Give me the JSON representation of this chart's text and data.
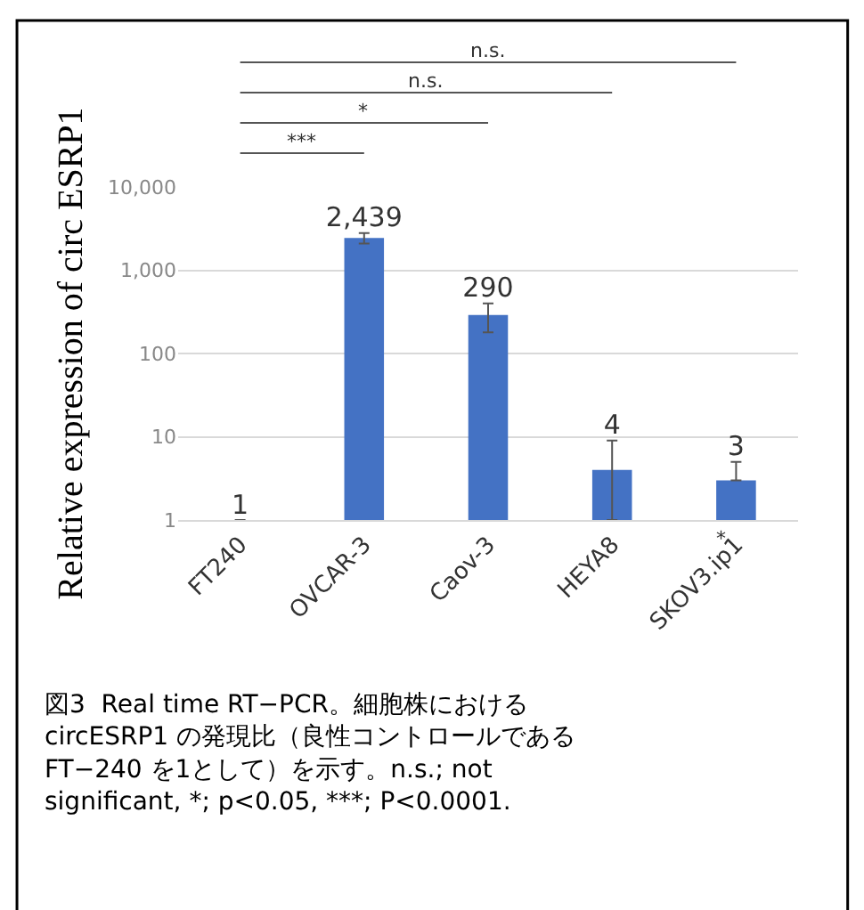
{
  "chart_data": {
    "type": "bar",
    "ylabel": "Relative expression of circ ESRP1",
    "categories": [
      "FT240",
      "OVCAR-3",
      "Caov-3",
      "HEYA8",
      "SKOV3.ip1"
    ],
    "values": [
      1,
      2439,
      290,
      4,
      3
    ],
    "errors": [
      null,
      [
        2100,
        2800
      ],
      [
        180,
        400
      ],
      [
        1,
        9
      ],
      [
        3,
        5
      ]
    ],
    "color": "#4472c4",
    "value_labels": [
      "1",
      "2,439",
      "290",
      "4",
      "3"
    ],
    "log": true,
    "ylim": [
      1,
      10000
    ],
    "yticks": [
      {
        "value": 1,
        "label": "1"
      },
      {
        "value": 10,
        "label": "10"
      },
      {
        "value": 100,
        "label": "100"
      },
      {
        "value": 1000,
        "label": "1,000"
      },
      {
        "value": 10000,
        "label": "10,000"
      }
    ],
    "grid": "y",
    "annotations": [
      "***",
      "*",
      "n.s.",
      "n.s.",
      "*",
      "図3  Real time RT−PCR。細胞株における circESRP1 の発現比（良性コントロールである FT−240 を1として）を示す。n.s.; not significant, *; p<0.05, ***; P<0.0001."
    ]
  }
}
